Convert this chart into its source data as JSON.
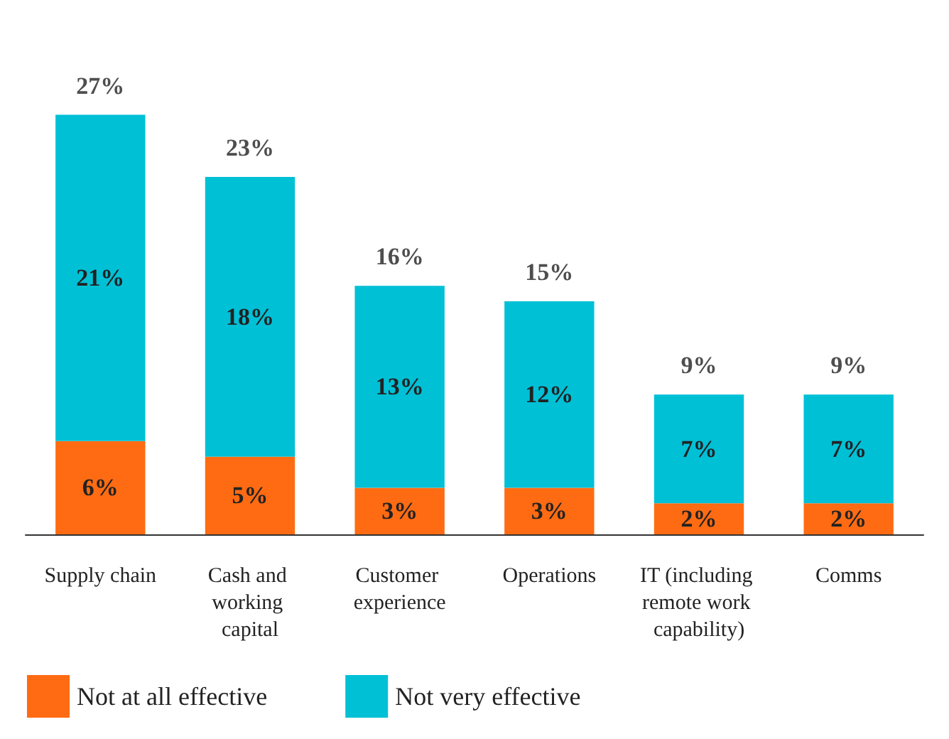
{
  "chart_data": {
    "type": "bar",
    "stacked": true,
    "categories": [
      "Supply chain",
      "Cash and working capital",
      "Customer experience",
      "Operations",
      "IT (including remote work capability)",
      "Comms"
    ],
    "series": [
      {
        "name": "Not at all effective",
        "color": "#ff6b13",
        "values": [
          6,
          5,
          3,
          3,
          2,
          2
        ],
        "value_labels": [
          "6%",
          "5%",
          "3%",
          "3%",
          "2%",
          "2%"
        ]
      },
      {
        "name": "Not very effective",
        "color": "#00c0d6",
        "values": [
          21,
          18,
          13,
          12,
          7,
          7
        ],
        "value_labels": [
          "21%",
          "18%",
          "13%",
          "12%",
          "7%",
          "7%"
        ]
      }
    ],
    "totals": [
      "27%",
      "23%",
      "16%",
      "15%",
      "9%",
      "9%"
    ],
    "legend": "bottom left"
  }
}
